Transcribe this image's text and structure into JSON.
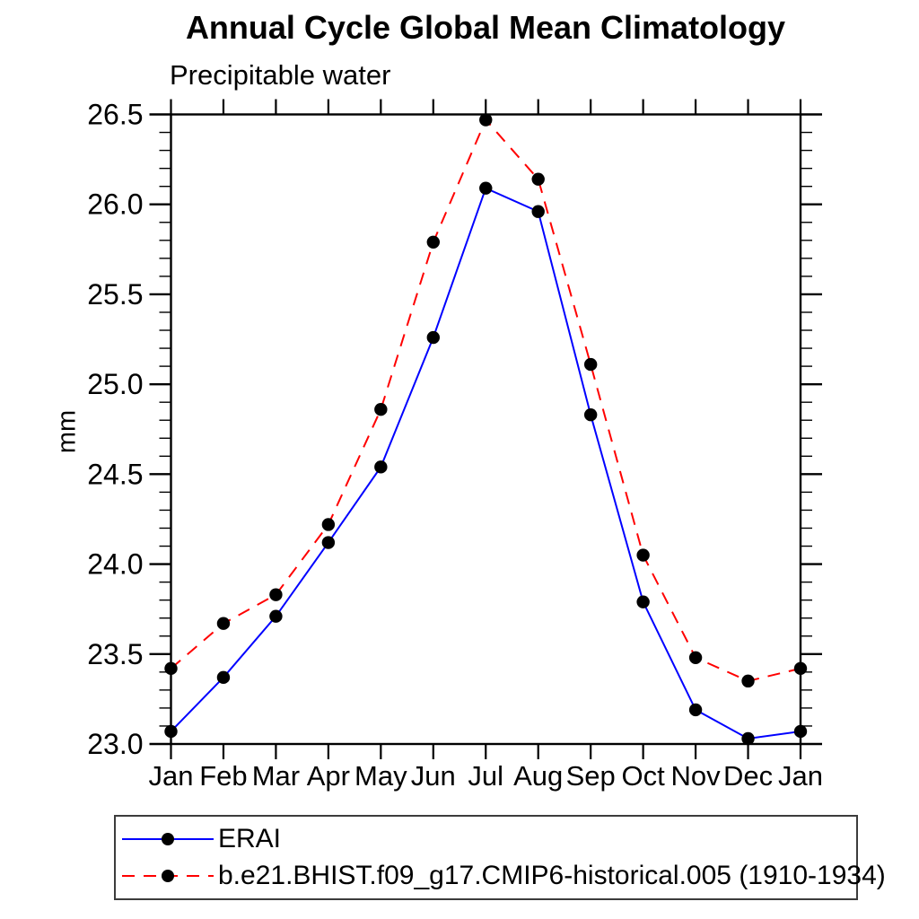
{
  "chart_data": {
    "type": "line",
    "title": "Annual Cycle Global Mean Climatology",
    "subtitle": "Precipitable water",
    "xlabel": "",
    "ylabel": "mm",
    "categories": [
      "Jan",
      "Feb",
      "Mar",
      "Apr",
      "May",
      "Jun",
      "Jul",
      "Aug",
      "Sep",
      "Oct",
      "Nov",
      "Dec",
      "Jan"
    ],
    "ylim": [
      23.0,
      26.5
    ],
    "ytick_step": 0.5,
    "ytick_minor_step": 0.1,
    "ytick_labels": [
      "23.0",
      "23.5",
      "24.0",
      "24.5",
      "25.0",
      "25.5",
      "26.0",
      "26.5"
    ],
    "grid": false,
    "legend_position": "bottom-left box",
    "axis_color": "#000000",
    "marker_color": "#000000",
    "series": [
      {
        "name": "ERAI",
        "color": "#0000ff",
        "line_style": "solid",
        "marker": "filled-circle",
        "values": [
          23.07,
          23.37,
          23.71,
          24.12,
          24.54,
          25.26,
          26.09,
          25.96,
          24.83,
          23.79,
          23.19,
          23.03,
          23.07
        ]
      },
      {
        "name": "b.e21.BHIST.f09_g17.CMIP6-historical.005 (1910-1934)",
        "color": "#ff0000",
        "line_style": "dashed",
        "marker": "filled-circle",
        "values": [
          23.42,
          23.67,
          23.83,
          24.22,
          24.86,
          25.79,
          26.47,
          26.14,
          25.11,
          24.05,
          23.48,
          23.35,
          23.42
        ]
      }
    ]
  }
}
